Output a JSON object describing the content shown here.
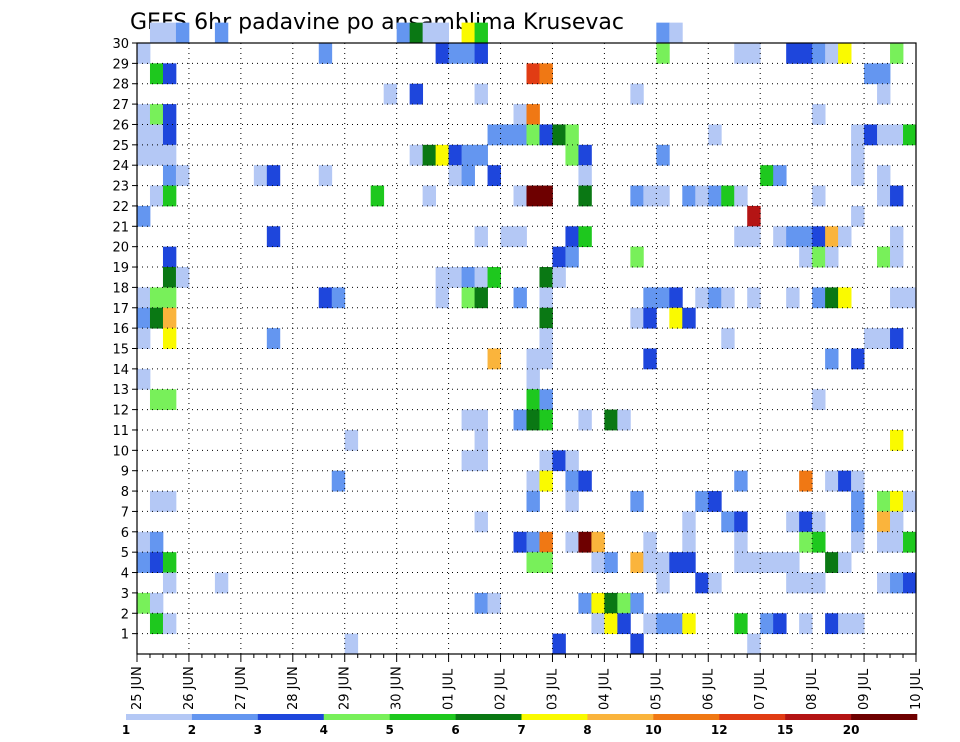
{
  "chart_data": {
    "type": "heatmap",
    "title": "GEFS 6hr padavine po ansamblima Krusevac",
    "xlabel": "",
    "ylabel": "",
    "x_ticks": [
      "25 JUN",
      "26 JUN",
      "27 JUN",
      "28 JUN",
      "29 JUN",
      "30 JUN",
      "01 JUL",
      "02 JUL",
      "03 JUL",
      "04 JUL",
      "05 JUL",
      "06 JUL",
      "07 JUL",
      "08 JUL",
      "09 JUL",
      "10 JUL"
    ],
    "y_range": [
      0,
      30
    ],
    "y_ticks": [
      1,
      2,
      3,
      4,
      5,
      6,
      7,
      8,
      9,
      10,
      11,
      12,
      13,
      14,
      15,
      16,
      17,
      18,
      19,
      20,
      21,
      22,
      23,
      24,
      25,
      26,
      27,
      28,
      29,
      30
    ],
    "steps_per_day": 4,
    "grid": "dotted",
    "colorbar": {
      "position": "bottom",
      "labels": [
        "1",
        "2",
        "3",
        "4",
        "5",
        "6",
        "7",
        "8",
        "10",
        "12",
        "15",
        "20"
      ],
      "colors": [
        "#b4c8f5",
        "#6496f0",
        "#1e46dc",
        "#78f05a",
        "#1ec81e",
        "#0a7814",
        "#fafa00",
        "#fab43c",
        "#f07814",
        "#e13c14",
        "#b41414",
        "#6e0000"
      ]
    },
    "cells": [
      [
        30,
        1,
        0
      ],
      [
        30,
        2,
        0
      ],
      [
        30,
        3,
        1
      ],
      [
        30,
        6,
        1
      ],
      [
        30,
        20,
        1
      ],
      [
        30,
        21,
        5
      ],
      [
        30,
        22,
        0
      ],
      [
        30,
        23,
        0
      ],
      [
        30,
        25,
        6
      ],
      [
        30,
        26,
        4
      ],
      [
        30,
        40,
        1
      ],
      [
        30,
        41,
        0
      ],
      [
        29,
        0,
        0
      ],
      [
        29,
        14,
        1
      ],
      [
        29,
        23,
        2
      ],
      [
        29,
        24,
        1
      ],
      [
        29,
        25,
        1
      ],
      [
        29,
        26,
        2
      ],
      [
        29,
        40,
        3
      ],
      [
        29,
        46,
        0
      ],
      [
        29,
        47,
        0
      ],
      [
        29,
        50,
        2
      ],
      [
        29,
        51,
        2
      ],
      [
        29,
        52,
        1
      ],
      [
        29,
        53,
        0
      ],
      [
        29,
        54,
        6
      ],
      [
        29,
        58,
        3
      ],
      [
        28,
        1,
        4
      ],
      [
        28,
        2,
        2
      ],
      [
        28,
        30,
        9
      ],
      [
        28,
        31,
        8
      ],
      [
        28,
        56,
        1
      ],
      [
        28,
        57,
        1
      ],
      [
        27,
        19,
        0
      ],
      [
        27,
        21,
        2
      ],
      [
        27,
        26,
        0
      ],
      [
        27,
        38,
        0
      ],
      [
        27,
        57,
        0
      ],
      [
        26,
        0,
        0
      ],
      [
        26,
        1,
        3
      ],
      [
        26,
        2,
        2
      ],
      [
        26,
        29,
        0
      ],
      [
        26,
        30,
        8
      ],
      [
        26,
        52,
        0
      ],
      [
        25,
        0,
        0
      ],
      [
        25,
        1,
        0
      ],
      [
        25,
        2,
        2
      ],
      [
        25,
        27,
        1
      ],
      [
        25,
        28,
        1
      ],
      [
        25,
        29,
        1
      ],
      [
        25,
        30,
        3
      ],
      [
        25,
        31,
        2
      ],
      [
        25,
        32,
        5
      ],
      [
        25,
        33,
        3
      ],
      [
        25,
        44,
        0
      ],
      [
        25,
        55,
        0
      ],
      [
        25,
        56,
        2
      ],
      [
        25,
        57,
        0
      ],
      [
        25,
        58,
        0
      ],
      [
        25,
        59,
        4
      ],
      [
        24,
        0,
        0
      ],
      [
        24,
        1,
        0
      ],
      [
        24,
        2,
        0
      ],
      [
        24,
        21,
        0
      ],
      [
        24,
        22,
        5
      ],
      [
        24,
        23,
        6
      ],
      [
        24,
        24,
        2
      ],
      [
        24,
        25,
        1
      ],
      [
        24,
        26,
        1
      ],
      [
        24,
        33,
        3
      ],
      [
        24,
        34,
        2
      ],
      [
        24,
        40,
        1
      ],
      [
        24,
        55,
        0
      ],
      [
        23,
        2,
        1
      ],
      [
        23,
        3,
        0
      ],
      [
        23,
        9,
        0
      ],
      [
        23,
        10,
        2
      ],
      [
        23,
        14,
        0
      ],
      [
        23,
        24,
        0
      ],
      [
        23,
        25,
        1
      ],
      [
        23,
        27,
        2
      ],
      [
        23,
        34,
        0
      ],
      [
        23,
        48,
        4
      ],
      [
        23,
        49,
        1
      ],
      [
        23,
        55,
        0
      ],
      [
        23,
        57,
        0
      ],
      [
        22,
        1,
        0
      ],
      [
        22,
        2,
        4
      ],
      [
        22,
        18,
        4
      ],
      [
        22,
        22,
        0
      ],
      [
        22,
        29,
        0
      ],
      [
        22,
        30,
        11
      ],
      [
        22,
        31,
        11
      ],
      [
        22,
        34,
        5
      ],
      [
        22,
        38,
        1
      ],
      [
        22,
        39,
        0
      ],
      [
        22,
        40,
        0
      ],
      [
        22,
        42,
        1
      ],
      [
        22,
        43,
        0
      ],
      [
        22,
        44,
        1
      ],
      [
        22,
        45,
        4
      ],
      [
        22,
        46,
        0
      ],
      [
        22,
        52,
        0
      ],
      [
        22,
        57,
        0
      ],
      [
        22,
        58,
        2
      ],
      [
        21,
        0,
        1
      ],
      [
        21,
        47,
        10
      ],
      [
        21,
        55,
        0
      ],
      [
        20,
        10,
        2
      ],
      [
        20,
        26,
        0
      ],
      [
        20,
        28,
        0
      ],
      [
        20,
        29,
        0
      ],
      [
        20,
        33,
        2
      ],
      [
        20,
        34,
        4
      ],
      [
        20,
        46,
        0
      ],
      [
        20,
        47,
        0
      ],
      [
        20,
        49,
        0
      ],
      [
        20,
        50,
        1
      ],
      [
        20,
        51,
        1
      ],
      [
        20,
        52,
        2
      ],
      [
        20,
        53,
        7
      ],
      [
        20,
        54,
        0
      ],
      [
        20,
        58,
        0
      ],
      [
        19,
        2,
        2
      ],
      [
        19,
        32,
        2
      ],
      [
        19,
        33,
        1
      ],
      [
        19,
        38,
        3
      ],
      [
        19,
        51,
        0
      ],
      [
        19,
        52,
        3
      ],
      [
        19,
        53,
        0
      ],
      [
        19,
        57,
        3
      ],
      [
        19,
        58,
        0
      ],
      [
        18,
        2,
        5
      ],
      [
        18,
        3,
        0
      ],
      [
        18,
        23,
        0
      ],
      [
        18,
        24,
        0
      ],
      [
        18,
        25,
        1
      ],
      [
        18,
        26,
        0
      ],
      [
        18,
        27,
        4
      ],
      [
        18,
        31,
        5
      ],
      [
        18,
        32,
        0
      ],
      [
        17,
        0,
        0
      ],
      [
        17,
        1,
        3
      ],
      [
        17,
        2,
        3
      ],
      [
        17,
        14,
        2
      ],
      [
        17,
        15,
        1
      ],
      [
        17,
        23,
        0
      ],
      [
        17,
        25,
        3
      ],
      [
        17,
        26,
        5
      ],
      [
        17,
        29,
        1
      ],
      [
        17,
        31,
        0
      ],
      [
        17,
        39,
        1
      ],
      [
        17,
        40,
        1
      ],
      [
        17,
        41,
        2
      ],
      [
        17,
        43,
        0
      ],
      [
        17,
        44,
        1
      ],
      [
        17,
        45,
        0
      ],
      [
        17,
        47,
        0
      ],
      [
        17,
        50,
        0
      ],
      [
        17,
        52,
        1
      ],
      [
        17,
        53,
        5
      ],
      [
        17,
        54,
        6
      ],
      [
        17,
        58,
        0
      ],
      [
        17,
        59,
        0
      ],
      [
        16,
        0,
        1
      ],
      [
        16,
        1,
        5
      ],
      [
        16,
        2,
        7
      ],
      [
        16,
        31,
        5
      ],
      [
        16,
        38,
        0
      ],
      [
        16,
        39,
        2
      ],
      [
        16,
        41,
        6
      ],
      [
        16,
        42,
        2
      ],
      [
        15,
        0,
        0
      ],
      [
        15,
        2,
        6
      ],
      [
        15,
        10,
        1
      ],
      [
        15,
        31,
        0
      ],
      [
        15,
        45,
        0
      ],
      [
        15,
        56,
        0
      ],
      [
        15,
        57,
        0
      ],
      [
        15,
        58,
        2
      ],
      [
        14,
        27,
        7
      ],
      [
        14,
        30,
        0
      ],
      [
        14,
        31,
        0
      ],
      [
        14,
        39,
        2
      ],
      [
        14,
        53,
        1
      ],
      [
        14,
        55,
        2
      ],
      [
        13,
        0,
        0
      ],
      [
        13,
        30,
        0
      ],
      [
        12,
        1,
        3
      ],
      [
        12,
        2,
        3
      ],
      [
        12,
        30,
        4
      ],
      [
        12,
        31,
        1
      ],
      [
        12,
        52,
        0
      ],
      [
        11,
        25,
        0
      ],
      [
        11,
        26,
        0
      ],
      [
        11,
        29,
        1
      ],
      [
        11,
        30,
        5
      ],
      [
        11,
        31,
        4
      ],
      [
        11,
        34,
        0
      ],
      [
        11,
        36,
        5
      ],
      [
        11,
        37,
        0
      ],
      [
        10,
        16,
        0
      ],
      [
        10,
        26,
        0
      ],
      [
        10,
        58,
        6
      ],
      [
        9,
        25,
        0
      ],
      [
        9,
        26,
        0
      ],
      [
        9,
        31,
        0
      ],
      [
        9,
        32,
        2
      ],
      [
        9,
        33,
        0
      ],
      [
        8,
        15,
        1
      ],
      [
        8,
        30,
        0
      ],
      [
        8,
        31,
        6
      ],
      [
        8,
        33,
        1
      ],
      [
        8,
        34,
        2
      ],
      [
        8,
        46,
        1
      ],
      [
        8,
        51,
        8
      ],
      [
        8,
        53,
        0
      ],
      [
        8,
        54,
        2
      ],
      [
        8,
        55,
        0
      ],
      [
        7,
        1,
        0
      ],
      [
        7,
        2,
        0
      ],
      [
        7,
        30,
        1
      ],
      [
        7,
        33,
        0
      ],
      [
        7,
        38,
        1
      ],
      [
        7,
        43,
        1
      ],
      [
        7,
        44,
        2
      ],
      [
        7,
        55,
        1
      ],
      [
        7,
        57,
        3
      ],
      [
        7,
        58,
        6
      ],
      [
        7,
        59,
        0
      ],
      [
        6,
        26,
        0
      ],
      [
        6,
        42,
        0
      ],
      [
        6,
        45,
        1
      ],
      [
        6,
        46,
        2
      ],
      [
        6,
        50,
        0
      ],
      [
        6,
        51,
        2
      ],
      [
        6,
        52,
        0
      ],
      [
        6,
        55,
        1
      ],
      [
        6,
        57,
        7
      ],
      [
        6,
        58,
        0
      ],
      [
        5,
        0,
        0
      ],
      [
        5,
        1,
        1
      ],
      [
        5,
        29,
        2
      ],
      [
        5,
        30,
        1
      ],
      [
        5,
        31,
        8
      ],
      [
        5,
        33,
        0
      ],
      [
        5,
        34,
        11
      ],
      [
        5,
        35,
        7
      ],
      [
        5,
        39,
        0
      ],
      [
        5,
        42,
        0
      ],
      [
        5,
        46,
        0
      ],
      [
        5,
        51,
        3
      ],
      [
        5,
        52,
        4
      ],
      [
        5,
        55,
        0
      ],
      [
        5,
        57,
        0
      ],
      [
        5,
        58,
        0
      ],
      [
        5,
        59,
        4
      ],
      [
        4,
        0,
        1
      ],
      [
        4,
        1,
        2
      ],
      [
        4,
        2,
        4
      ],
      [
        4,
        30,
        3
      ],
      [
        4,
        31,
        3
      ],
      [
        4,
        35,
        0
      ],
      [
        4,
        36,
        1
      ],
      [
        4,
        38,
        7
      ],
      [
        4,
        39,
        0
      ],
      [
        4,
        40,
        0
      ],
      [
        4,
        41,
        2
      ],
      [
        4,
        42,
        2
      ],
      [
        4,
        46,
        0
      ],
      [
        4,
        47,
        0
      ],
      [
        4,
        48,
        0
      ],
      [
        4,
        49,
        0
      ],
      [
        4,
        50,
        0
      ],
      [
        4,
        53,
        5
      ],
      [
        4,
        54,
        0
      ],
      [
        3,
        2,
        0
      ],
      [
        3,
        6,
        0
      ],
      [
        3,
        40,
        0
      ],
      [
        3,
        43,
        2
      ],
      [
        3,
        44,
        0
      ],
      [
        3,
        50,
        0
      ],
      [
        3,
        51,
        0
      ],
      [
        3,
        52,
        0
      ],
      [
        3,
        57,
        0
      ],
      [
        3,
        58,
        1
      ],
      [
        3,
        59,
        2
      ],
      [
        2,
        0,
        3
      ],
      [
        2,
        1,
        0
      ],
      [
        2,
        26,
        1
      ],
      [
        2,
        27,
        0
      ],
      [
        2,
        34,
        1
      ],
      [
        2,
        35,
        6
      ],
      [
        2,
        36,
        5
      ],
      [
        2,
        37,
        3
      ],
      [
        2,
        38,
        1
      ],
      [
        1,
        1,
        4
      ],
      [
        1,
        2,
        0
      ],
      [
        1,
        35,
        0
      ],
      [
        1,
        36,
        6
      ],
      [
        1,
        37,
        2
      ],
      [
        1,
        39,
        0
      ],
      [
        1,
        40,
        1
      ],
      [
        1,
        41,
        1
      ],
      [
        1,
        42,
        6
      ],
      [
        1,
        46,
        4
      ],
      [
        1,
        48,
        1
      ],
      [
        1,
        49,
        2
      ],
      [
        1,
        51,
        0
      ],
      [
        1,
        53,
        2
      ],
      [
        1,
        54,
        0
      ],
      [
        1,
        55,
        0
      ],
      [
        0,
        16,
        0
      ],
      [
        0,
        32,
        2
      ],
      [
        0,
        38,
        2
      ],
      [
        0,
        47,
        0
      ]
    ]
  }
}
